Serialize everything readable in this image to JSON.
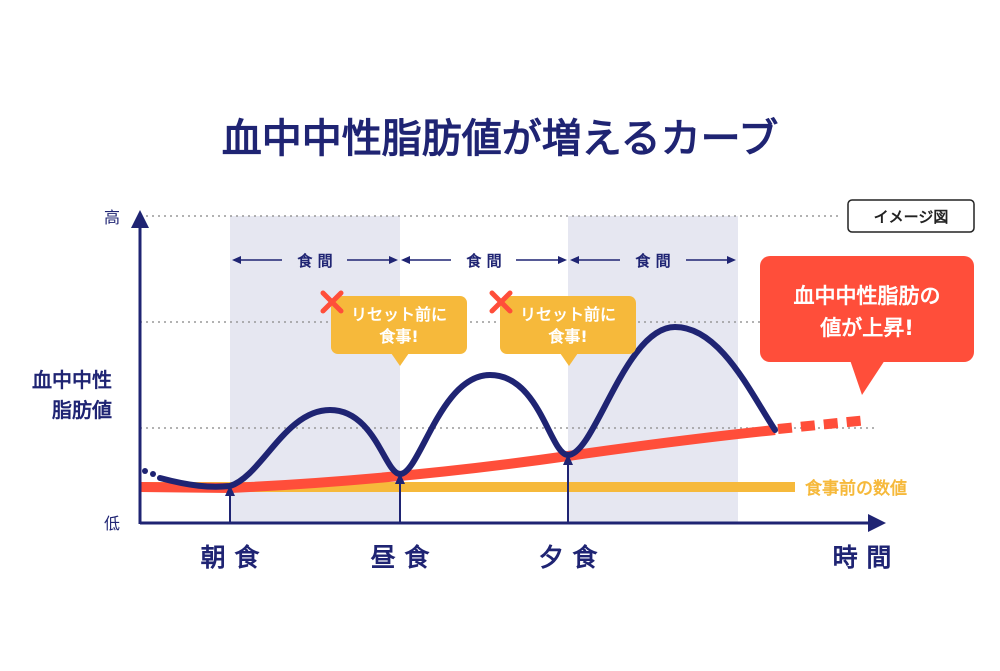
{
  "title": "血中中性脂肪値が増えるカーブ",
  "badge": "イメージ図",
  "y_axis": {
    "label_line1": "血中中性",
    "label_line2": "脂肪値",
    "high": "高",
    "low": "低"
  },
  "x_axis": {
    "label": "時 間",
    "meals": [
      "朝 食",
      "昼 食",
      "夕 食"
    ]
  },
  "interval_label": "食 間",
  "callout_reset": {
    "line1": "リセット前に",
    "line2": "食事!"
  },
  "callout_rise": {
    "line1": "血中中性脂肪の",
    "line2": "値が上昇!"
  },
  "baseline_label": "食事前の数値",
  "colors": {
    "navy": "#1f2473",
    "red": "#ff4e3a",
    "yellow": "#f6b93b",
    "band": "#e6e7f1",
    "grid": "#999999"
  },
  "icons": [
    "cross-icon"
  ]
}
